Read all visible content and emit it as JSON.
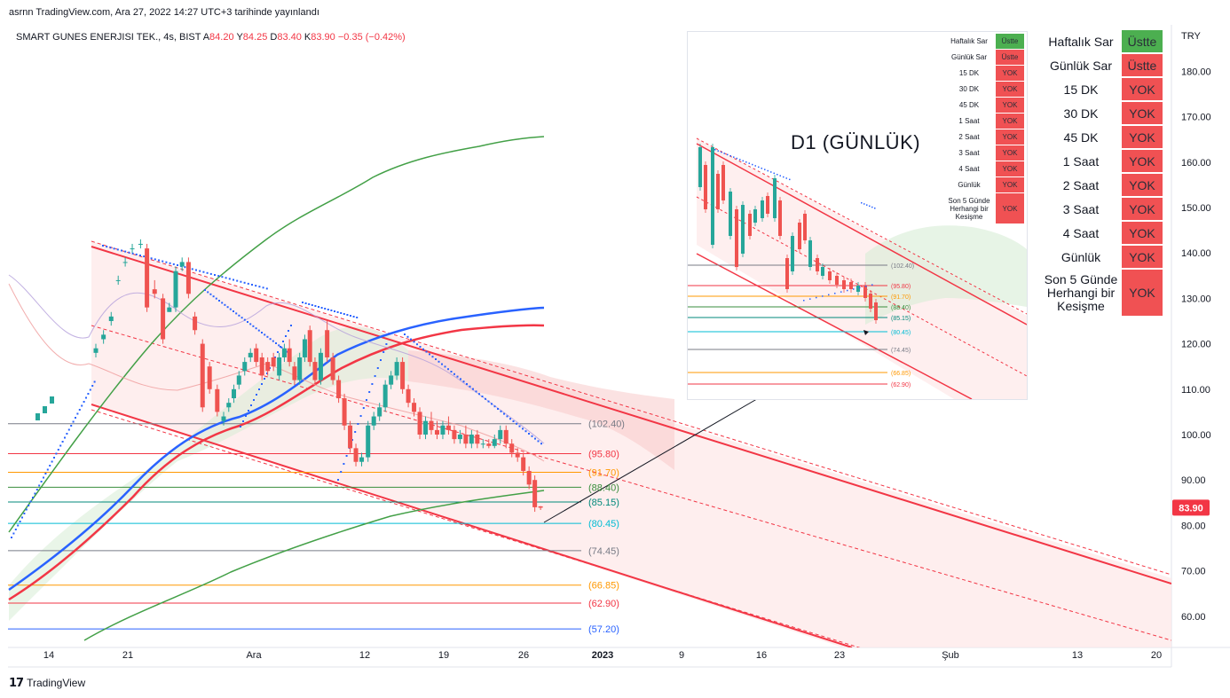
{
  "header": {
    "published_line": "asrnn TradingView.com, Ara 27, 2022 14:27 UTC+3 tarihinde yayınlandı"
  },
  "symbol": {
    "name": "SMART GUNES ENERJISI TEK., 4s, BIST",
    "open_label": "A",
    "open": "84.20",
    "high_label": "Y",
    "high": "84.25",
    "low_label": "D",
    "low": "83.40",
    "close_label": "K",
    "close": "83.90",
    "change": "−0.35 (−0.42%)"
  },
  "currency": "TRY",
  "last_price_badge": "83.90",
  "colors": {
    "bull": "#26a69a",
    "bear": "#ef5350",
    "channel": "#f23645",
    "ma_blue": "#2962ff",
    "ma_red": "#f23645",
    "ma_green": "#43a047",
    "sar": "#2962ff",
    "badge": "#f23645",
    "table_green": "#4caf50",
    "table_red": "#f05153"
  },
  "signal_table": {
    "rows": [
      {
        "label": "Haftalık Sar",
        "value": "Üstte",
        "status": "green"
      },
      {
        "label": "Günlük Sar",
        "value": "Üstte",
        "status": "red"
      },
      {
        "label": "15 DK",
        "value": "YOK",
        "status": "red"
      },
      {
        "label": "30 DK",
        "value": "YOK",
        "status": "red"
      },
      {
        "label": "45 DK",
        "value": "YOK",
        "status": "red"
      },
      {
        "label": "1 Saat",
        "value": "YOK",
        "status": "red"
      },
      {
        "label": "2 Saat",
        "value": "YOK",
        "status": "red"
      },
      {
        "label": "3 Saat",
        "value": "YOK",
        "status": "red"
      },
      {
        "label": "4 Saat",
        "value": "YOK",
        "status": "red"
      },
      {
        "label": "Günlük",
        "value": "YOK",
        "status": "red"
      },
      {
        "label": "Son 5 Günde Herhangi bir Kesişme",
        "value": "YOK",
        "status": "red"
      }
    ]
  },
  "inset": {
    "title": "D1 (GÜNLÜK)",
    "levels": [
      {
        "label": "(102.40)",
        "color": "#787b86"
      },
      {
        "label": "(95.80)",
        "color": "#f23645"
      },
      {
        "label": "(91.70)",
        "color": "#ff9800"
      },
      {
        "label": "(88.40)",
        "color": "#388e3c"
      },
      {
        "label": "(85.15)",
        "color": "#00897b"
      },
      {
        "label": "(80.45)",
        "color": "#00bcd4"
      },
      {
        "label": "(74.45)",
        "color": "#787b86"
      },
      {
        "label": "(66.85)",
        "color": "#ff9800"
      },
      {
        "label": "(62.90)",
        "color": "#f23645"
      }
    ]
  },
  "chart_data": {
    "type": "candlestick",
    "title": "SMART GUNES ENERJISI TEK., 4s, BIST",
    "x_tick_labels": [
      "14",
      "21",
      "Ara",
      "12",
      "19",
      "26",
      "2023",
      "9",
      "16",
      "23",
      "Şub",
      "13",
      "20"
    ],
    "y_tick_labels": [
      "180.00",
      "170.00",
      "160.00",
      "150.00",
      "140.00",
      "130.00",
      "120.00",
      "110.00",
      "100.00",
      "90.00",
      "80.00",
      "70.00",
      "60.00"
    ],
    "ylim": [
      54,
      187
    ],
    "last_price": 83.9,
    "fib_levels": [
      {
        "label": "(102.40)",
        "value": 102.4,
        "color": "#787b86"
      },
      {
        "label": "(95.80)",
        "value": 95.8,
        "color": "#f23645"
      },
      {
        "label": "(91.70)",
        "value": 91.7,
        "color": "#ff9800"
      },
      {
        "label": "(88.40)",
        "value": 88.4,
        "color": "#388e3c"
      },
      {
        "label": "(85.15)",
        "value": 85.15,
        "color": "#00897b"
      },
      {
        "label": "(80.45)",
        "value": 80.45,
        "color": "#00bcd4"
      },
      {
        "label": "(74.45)",
        "value": 74.45,
        "color": "#787b86"
      },
      {
        "label": "(66.85)",
        "value": 66.85,
        "color": "#ff9800"
      },
      {
        "label": "(62.90)",
        "value": 62.9,
        "color": "#f23645"
      },
      {
        "label": "(57.20)",
        "value": 57.2,
        "color": "#2962ff"
      }
    ],
    "candles": [
      {
        "x": 0.0,
        "o": 118,
        "h": 120,
        "l": 117,
        "c": 119
      },
      {
        "x": 1.2,
        "o": 121,
        "h": 123,
        "l": 120,
        "c": 122
      },
      {
        "x": 2.4,
        "o": 125,
        "h": 127,
        "l": 124,
        "c": 126
      },
      {
        "x": 3.5,
        "o": 134,
        "h": 135,
        "l": 133,
        "c": 134
      },
      {
        "x": 4.6,
        "o": 138,
        "h": 139,
        "l": 137,
        "c": 138
      },
      {
        "x": 5.7,
        "o": 141,
        "h": 142,
        "l": 140,
        "c": 141
      },
      {
        "x": 7.0,
        "o": 142,
        "h": 143,
        "l": 141,
        "c": 142
      },
      {
        "x": 8.0,
        "o": 141,
        "h": 142,
        "l": 127,
        "c": 128
      },
      {
        "x": 9.2,
        "o": 132,
        "h": 134,
        "l": 130,
        "c": 131
      },
      {
        "x": 10.5,
        "o": 130,
        "h": 131,
        "l": 120,
        "c": 121
      },
      {
        "x": 11.5,
        "o": 127,
        "h": 129,
        "l": 127,
        "c": 128
      },
      {
        "x": 12.5,
        "o": 128,
        "h": 137,
        "l": 127,
        "c": 136
      },
      {
        "x": 13.5,
        "o": 137,
        "h": 139,
        "l": 136,
        "c": 138
      },
      {
        "x": 14.5,
        "o": 138,
        "h": 139,
        "l": 130,
        "c": 131
      },
      {
        "x": 15.5,
        "o": 126,
        "h": 127,
        "l": 122,
        "c": 123
      },
      {
        "x": 16.7,
        "o": 120,
        "h": 121,
        "l": 105,
        "c": 106
      },
      {
        "x": 17.8,
        "o": 115,
        "h": 116,
        "l": 109,
        "c": 110
      },
      {
        "x": 19.0,
        "o": 110,
        "h": 111,
        "l": 104,
        "c": 105
      },
      {
        "x": 20.0,
        "o": 103,
        "h": 105,
        "l": 102,
        "c": 104
      },
      {
        "x": 20.8,
        "o": 106,
        "h": 108,
        "l": 105,
        "c": 107
      },
      {
        "x": 21.6,
        "o": 108,
        "h": 111,
        "l": 107,
        "c": 110
      },
      {
        "x": 22.4,
        "o": 111,
        "h": 114,
        "l": 110,
        "c": 113
      },
      {
        "x": 23.3,
        "o": 114,
        "h": 117,
        "l": 113,
        "c": 116
      },
      {
        "x": 24.2,
        "o": 117,
        "h": 119,
        "l": 116,
        "c": 118
      },
      {
        "x": 25.1,
        "o": 119,
        "h": 120,
        "l": 115,
        "c": 116
      },
      {
        "x": 26.0,
        "o": 117,
        "h": 118,
        "l": 112,
        "c": 113
      },
      {
        "x": 26.9,
        "o": 116,
        "h": 117,
        "l": 113,
        "c": 114
      },
      {
        "x": 27.8,
        "o": 117,
        "h": 118,
        "l": 114,
        "c": 115
      },
      {
        "x": 28.7,
        "o": 113,
        "h": 118,
        "l": 112,
        "c": 117
      },
      {
        "x": 29.5,
        "o": 117,
        "h": 120,
        "l": 116,
        "c": 119
      },
      {
        "x": 30.3,
        "o": 119,
        "h": 121,
        "l": 115,
        "c": 116
      },
      {
        "x": 31.1,
        "o": 115,
        "h": 116,
        "l": 111,
        "c": 112
      },
      {
        "x": 31.9,
        "o": 112,
        "h": 118,
        "l": 111,
        "c": 117
      },
      {
        "x": 32.7,
        "o": 117,
        "h": 122,
        "l": 116,
        "c": 121
      },
      {
        "x": 33.5,
        "o": 123,
        "h": 124,
        "l": 115,
        "c": 116
      },
      {
        "x": 34.3,
        "o": 116,
        "h": 117,
        "l": 111,
        "c": 112
      },
      {
        "x": 35.2,
        "o": 112,
        "h": 119,
        "l": 111,
        "c": 118
      },
      {
        "x": 36.2,
        "o": 123,
        "h": 125,
        "l": 116,
        "c": 117
      },
      {
        "x": 37.1,
        "o": 117,
        "h": 118,
        "l": 111,
        "c": 112
      },
      {
        "x": 38.0,
        "o": 112,
        "h": 113,
        "l": 107,
        "c": 108
      },
      {
        "x": 38.9,
        "o": 108,
        "h": 109,
        "l": 101,
        "c": 102
      },
      {
        "x": 39.8,
        "o": 102,
        "h": 103,
        "l": 96,
        "c": 97
      },
      {
        "x": 40.7,
        "o": 97,
        "h": 98,
        "l": 93,
        "c": 94
      },
      {
        "x": 41.6,
        "o": 94,
        "h": 96,
        "l": 93,
        "c": 95
      },
      {
        "x": 42.6,
        "o": 95,
        "h": 103,
        "l": 94,
        "c": 102
      },
      {
        "x": 43.5,
        "o": 102,
        "h": 105,
        "l": 101,
        "c": 104
      },
      {
        "x": 44.4,
        "o": 104,
        "h": 107,
        "l": 103,
        "c": 106
      },
      {
        "x": 45.3,
        "o": 106,
        "h": 112,
        "l": 105,
        "c": 111
      },
      {
        "x": 46.2,
        "o": 111,
        "h": 114,
        "l": 110,
        "c": 113
      },
      {
        "x": 47.1,
        "o": 113,
        "h": 117,
        "l": 112,
        "c": 116
      },
      {
        "x": 48.0,
        "o": 116,
        "h": 117,
        "l": 109,
        "c": 110
      },
      {
        "x": 48.9,
        "o": 110,
        "h": 111,
        "l": 106,
        "c": 107
      },
      {
        "x": 49.8,
        "o": 107,
        "h": 108,
        "l": 104,
        "c": 105
      },
      {
        "x": 50.7,
        "o": 105,
        "h": 106,
        "l": 99,
        "c": 100
      },
      {
        "x": 51.6,
        "o": 100,
        "h": 104,
        "l": 99,
        "c": 103
      },
      {
        "x": 52.5,
        "o": 103,
        "h": 105,
        "l": 100,
        "c": 101
      },
      {
        "x": 53.4,
        "o": 101,
        "h": 103,
        "l": 99,
        "c": 100
      },
      {
        "x": 54.3,
        "o": 100,
        "h": 103,
        "l": 99,
        "c": 102
      },
      {
        "x": 55.2,
        "o": 102,
        "h": 104,
        "l": 100,
        "c": 101
      },
      {
        "x": 56.1,
        "o": 101,
        "h": 102,
        "l": 98,
        "c": 99
      },
      {
        "x": 57.0,
        "o": 99,
        "h": 101,
        "l": 98,
        "c": 100
      },
      {
        "x": 57.9,
        "o": 100,
        "h": 102,
        "l": 97,
        "c": 98
      },
      {
        "x": 58.8,
        "o": 98,
        "h": 101,
        "l": 97,
        "c": 100
      },
      {
        "x": 59.7,
        "o": 100,
        "h": 101,
        "l": 97,
        "c": 98
      },
      {
        "x": 60.6,
        "o": 98,
        "h": 99,
        "l": 97,
        "c": 98
      },
      {
        "x": 61.5,
        "o": 98,
        "h": 99,
        "l": 97,
        "c": 97.5
      },
      {
        "x": 62.4,
        "o": 97.5,
        "h": 100,
        "l": 97,
        "c": 99
      },
      {
        "x": 63.3,
        "o": 99,
        "h": 102,
        "l": 98,
        "c": 101
      },
      {
        "x": 64.2,
        "o": 101,
        "h": 102,
        "l": 97,
        "c": 98
      },
      {
        "x": 65.1,
        "o": 98,
        "h": 99,
        "l": 95,
        "c": 96
      },
      {
        "x": 66.0,
        "o": 96,
        "h": 97,
        "l": 94,
        "c": 95
      },
      {
        "x": 66.9,
        "o": 95,
        "h": 96,
        "l": 91,
        "c": 92
      },
      {
        "x": 67.8,
        "o": 92,
        "h": 93,
        "l": 88,
        "c": 89
      },
      {
        "x": 68.7,
        "o": 90,
        "h": 91,
        "l": 83,
        "c": 84
      },
      {
        "x": 69.6,
        "o": 84.2,
        "h": 84.25,
        "l": 83.4,
        "c": 83.9
      }
    ]
  }
}
